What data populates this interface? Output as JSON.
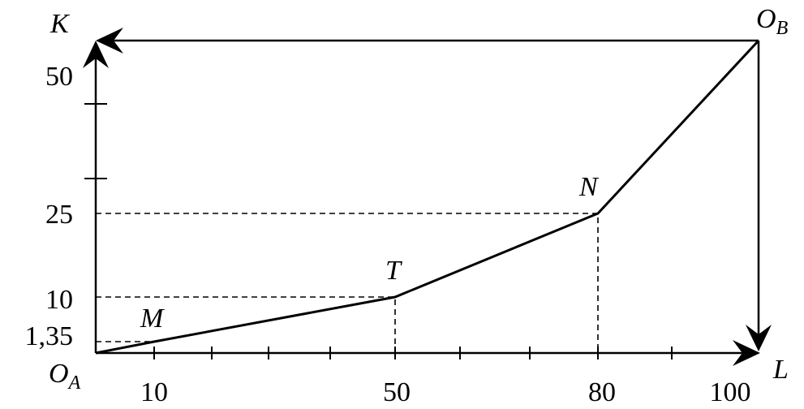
{
  "axes": {
    "y_label": "K",
    "x_label": "L"
  },
  "origins": {
    "a": {
      "main": "O",
      "sub": "A"
    },
    "b": {
      "main": "O",
      "sub": "B"
    }
  },
  "points": [
    {
      "label": "M"
    },
    {
      "label": "T"
    },
    {
      "label": "N"
    }
  ],
  "x_tick_labels": [
    "10",
    "50",
    "80",
    "100"
  ],
  "y_tick_labels": [
    "50",
    "25",
    "10",
    "1,35"
  ]
}
